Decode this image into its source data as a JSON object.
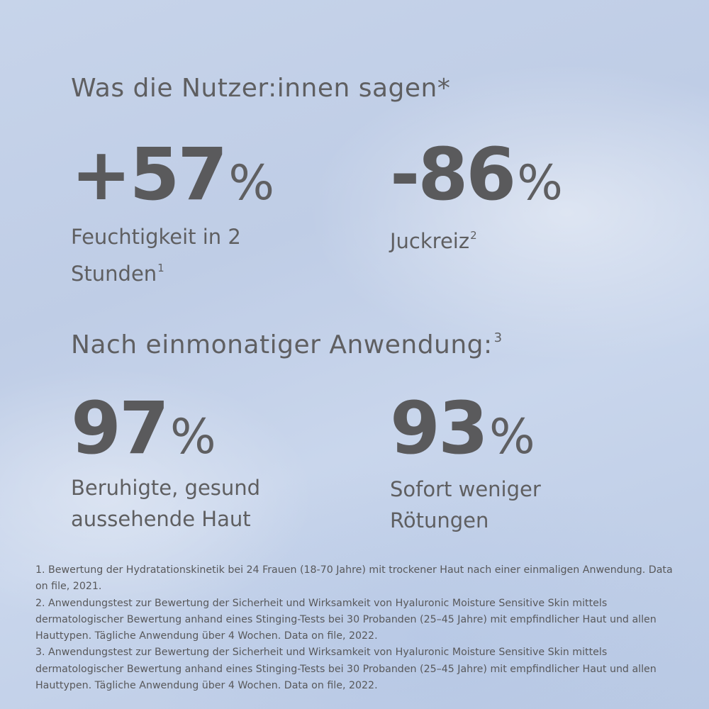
{
  "heading_top": {
    "text": "Was die Nutzer:innen sagen*"
  },
  "stats_top": [
    {
      "value": "+57",
      "unit": "%",
      "label_line1": "Feuchtigkeit in 2",
      "label_line2": "Stunden",
      "sup": "1"
    },
    {
      "value": "-86",
      "unit": "%",
      "label_line1": "Juckreiz",
      "label_line2": "",
      "sup": "2"
    }
  ],
  "heading_bottom": {
    "text": "Nach einmonatiger Anwendung:",
    "sup": "3"
  },
  "stats_bottom": [
    {
      "value": "97",
      "unit": "%",
      "label_line1": "Beruhigte, gesund",
      "label_line2": "aussehende Haut"
    },
    {
      "value": "93",
      "unit": "%",
      "label_line1": "Sofort weniger",
      "label_line2": "Rötungen"
    }
  ],
  "footnotes": [
    "1. Bewertung der Hydratationskinetik bei 24 Frauen (18-70 Jahre) mit trockener Haut nach einer einmaligen Anwendung. Data on file, 2021.",
    "2. Anwendungstest zur Bewertung der Sicherheit und Wirksamkeit von Hyaluronic Moisture Sensitive Skin mittels dermatologischer Bewertung anhand eines Stinging-Tests bei 30 Probanden (25–45 Jahre) mit empfindlicher Haut und allen Hauttypen. Tägliche Anwendung über 4 Wochen. Data on file, 2022.",
    "3. Anwendungstest zur Bewertung der Sicherheit und Wirksamkeit von Hyaluronic Moisture Sensitive Skin mittels dermatologischer Bewertung anhand eines Stinging-Tests bei 30 Probanden (25–45 Jahre) mit empfindlicher Haut und allen Hauttypen. Tägliche Anwendung über 4 Wochen. Data on file, 2022."
  ],
  "colors": {
    "text": "#5f5f61",
    "background": "#c5d3ea"
  }
}
